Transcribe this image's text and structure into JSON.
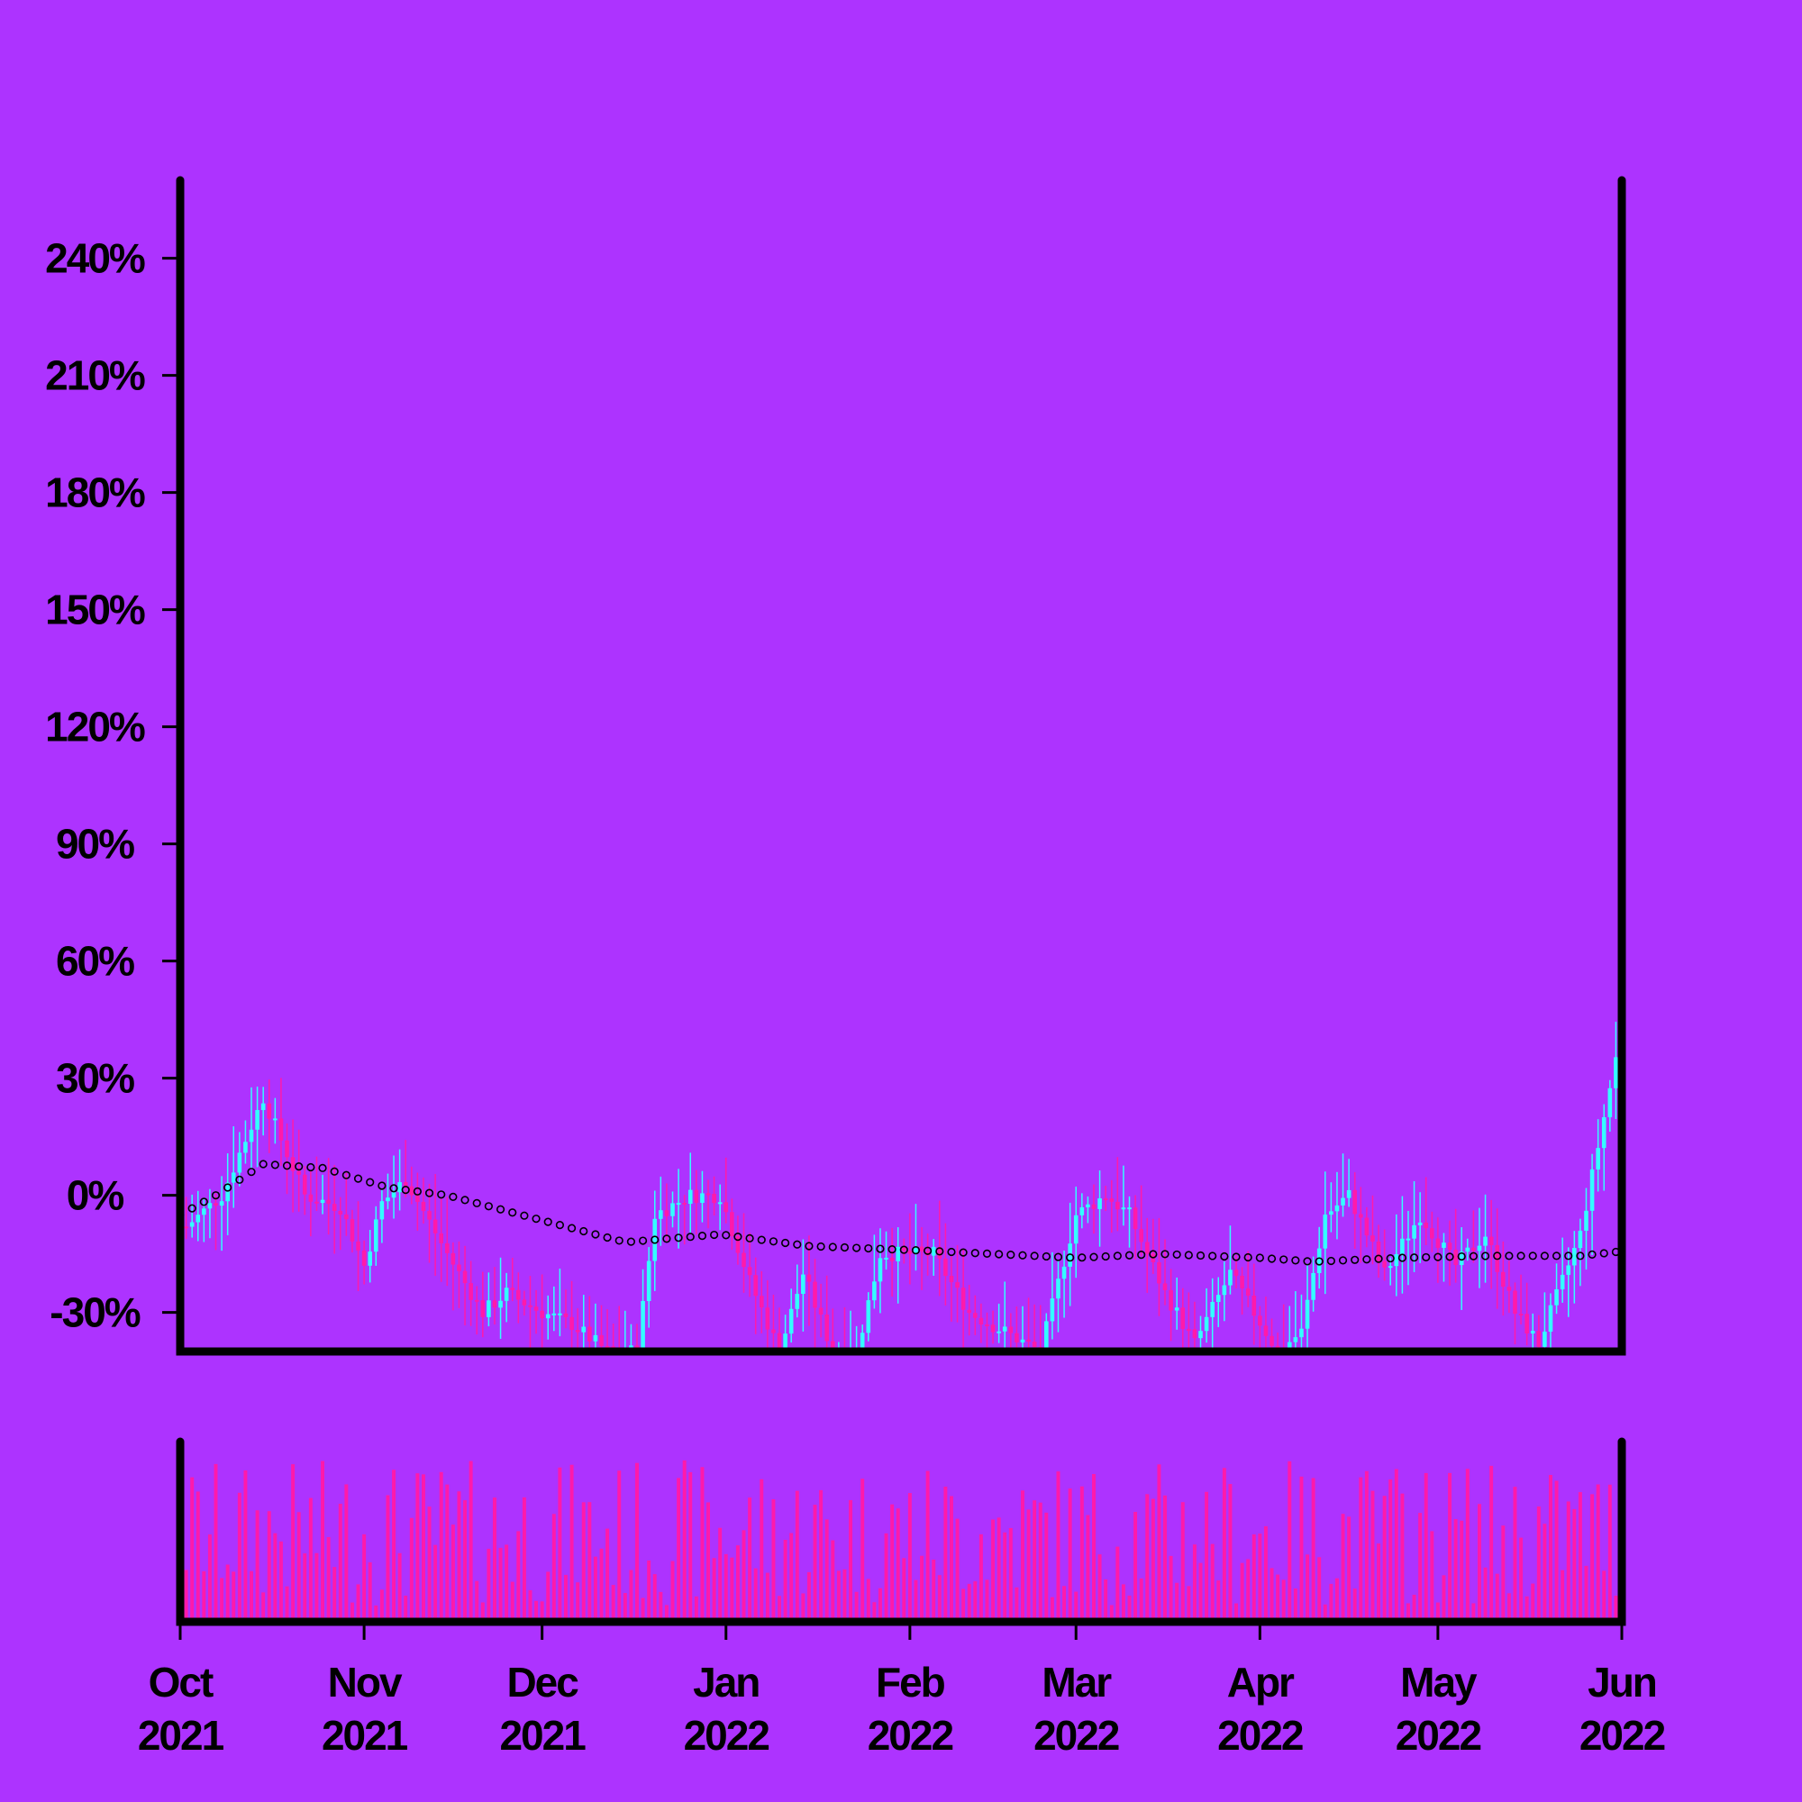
{
  "chart_data": {
    "type": "candlestick",
    "y_axis": {
      "ticks": [
        -30,
        0,
        30,
        60,
        90,
        120,
        150,
        180,
        210,
        240
      ],
      "tick_labels": [
        "-30%",
        "0%",
        "30%",
        "60%",
        "90%",
        "120%",
        "150%",
        "180%",
        "210%",
        "240%"
      ],
      "range": [
        -40,
        260
      ],
      "unit": "%"
    },
    "x_axis": {
      "range": [
        "2021-10-01",
        "2022-06-01"
      ],
      "ticks": [
        {
          "date": "2021-10-01",
          "month": "Oct",
          "year": "2021"
        },
        {
          "date": "2021-11-01",
          "month": "Nov",
          "year": "2021"
        },
        {
          "date": "2021-12-01",
          "month": "Dec",
          "year": "2021"
        },
        {
          "date": "2022-01-01",
          "month": "Jan",
          "year": "2022"
        },
        {
          "date": "2022-02-01",
          "month": "Feb",
          "year": "2022"
        },
        {
          "date": "2022-03-01",
          "month": "Mar",
          "year": "2022"
        },
        {
          "date": "2022-04-01",
          "month": "Apr",
          "year": "2022"
        },
        {
          "date": "2022-05-01",
          "month": "May",
          "year": "2022"
        },
        {
          "date": "2022-06-01",
          "month": "Jun",
          "year": "2022"
        }
      ]
    },
    "close_path": [
      [
        "2021-10-02",
        -8
      ],
      [
        "2021-10-08",
        0
      ],
      [
        "2021-10-15",
        25
      ],
      [
        "2021-10-22",
        0
      ],
      [
        "2021-10-28",
        -3
      ],
      [
        "2021-11-01",
        -18
      ],
      [
        "2021-11-04",
        -2
      ],
      [
        "2021-11-08",
        4
      ],
      [
        "2021-11-15",
        -15
      ],
      [
        "2021-11-21",
        -30
      ],
      [
        "2021-11-25",
        -25
      ],
      [
        "2021-12-01",
        -30
      ],
      [
        "2021-12-06",
        -33
      ],
      [
        "2021-12-12",
        -40
      ],
      [
        "2021-12-17",
        -40
      ],
      [
        "2021-12-20",
        -5
      ],
      [
        "2021-12-26",
        0
      ],
      [
        "2021-12-31",
        0
      ],
      [
        "2022-01-05",
        -22
      ],
      [
        "2022-01-10",
        -40
      ],
      [
        "2022-01-14",
        -20
      ],
      [
        "2022-01-19",
        -40
      ],
      [
        "2022-01-23",
        -40
      ],
      [
        "2022-01-27",
        -15
      ],
      [
        "2022-02-05",
        -15
      ],
      [
        "2022-02-11",
        -30
      ],
      [
        "2022-02-17",
        -35
      ],
      [
        "2022-02-23",
        -40
      ],
      [
        "2022-03-01",
        -5
      ],
      [
        "2022-03-06",
        0
      ],
      [
        "2022-03-10",
        -5
      ],
      [
        "2022-03-16",
        -25
      ],
      [
        "2022-03-21",
        -38
      ],
      [
        "2022-03-27",
        -20
      ],
      [
        "2022-04-04",
        -40
      ],
      [
        "2022-04-08",
        -35
      ],
      [
        "2022-04-12",
        -5
      ],
      [
        "2022-04-16",
        0
      ],
      [
        "2022-04-22",
        -20
      ],
      [
        "2022-04-28",
        -5
      ],
      [
        "2022-05-04",
        -18
      ],
      [
        "2022-05-09",
        -10
      ],
      [
        "2022-05-14",
        -30
      ],
      [
        "2022-05-18",
        -38
      ],
      [
        "2022-05-25",
        -10
      ],
      [
        "2022-05-31",
        35
      ]
    ],
    "moving_average": [
      [
        "2021-10-01",
        -5
      ],
      [
        "2021-10-07",
        0
      ],
      [
        "2021-10-15",
        8
      ],
      [
        "2021-10-25",
        7
      ],
      [
        "2021-11-05",
        2
      ],
      [
        "2021-11-15",
        0
      ],
      [
        "2021-11-30",
        -6
      ],
      [
        "2021-12-15",
        -12
      ],
      [
        "2021-12-31",
        -10
      ],
      [
        "2022-01-15",
        -13
      ],
      [
        "2022-02-01",
        -14
      ],
      [
        "2022-02-15",
        -15
      ],
      [
        "2022-03-01",
        -16
      ],
      [
        "2022-03-15",
        -15
      ],
      [
        "2022-04-01",
        -16
      ],
      [
        "2022-04-10",
        -17
      ],
      [
        "2022-04-25",
        -16
      ],
      [
        "2022-05-10",
        -15.5
      ],
      [
        "2022-05-25",
        -15.5
      ],
      [
        "2022-05-31",
        -14.5
      ]
    ],
    "colors": {
      "background": "#ad33ff",
      "up": "#33ffff",
      "down": "#ff1aaa",
      "volume": "#ff1aaa",
      "moving_average": "#000000",
      "axis": "#000000"
    },
    "volume_panel": true,
    "grid": false
  }
}
